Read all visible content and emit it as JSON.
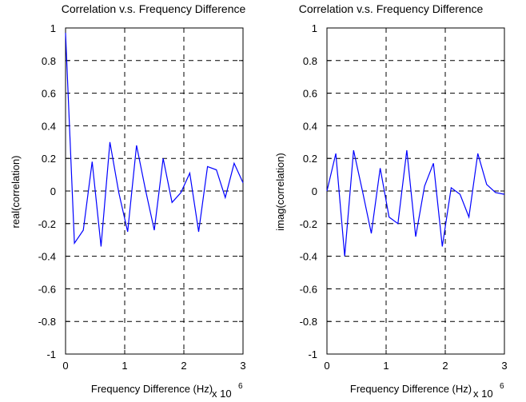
{
  "chart_data": [
    {
      "type": "line",
      "title": "Correlation v.s. Frequency Difference",
      "xlabel": "Frequency Difference (Hz)",
      "ylabel": "real(correlation)",
      "x_exponent_label": "x 10",
      "x_exponent": "6",
      "xlim": [
        0,
        3
      ],
      "ylim": [
        -1,
        1
      ],
      "xticks": [
        0,
        1,
        2,
        3
      ],
      "yticks": [
        -1,
        -0.8,
        -0.6,
        -0.4,
        -0.2,
        0,
        0.2,
        0.4,
        0.6,
        0.8,
        1
      ],
      "grid": true,
      "color": "#0000ff",
      "x": [
        0,
        0.15,
        0.3,
        0.45,
        0.6,
        0.75,
        0.9,
        1.05,
        1.2,
        1.35,
        1.5,
        1.65,
        1.8,
        1.95,
        2.1,
        2.25,
        2.4,
        2.55,
        2.7,
        2.85,
        3.0
      ],
      "values": [
        0.97,
        -0.32,
        -0.24,
        0.18,
        -0.34,
        0.3,
        -0.01,
        -0.25,
        0.28,
        0.01,
        -0.24,
        0.2,
        -0.07,
        -0.01,
        0.11,
        -0.25,
        0.15,
        0.13,
        -0.04,
        0.17,
        0.05
      ]
    },
    {
      "type": "line",
      "title": "Correlation v.s. Frequency Difference",
      "xlabel": "Frequency Difference (Hz)",
      "ylabel": "imag(correlation)",
      "x_exponent_label": "x 10",
      "x_exponent": "6",
      "xlim": [
        0,
        3
      ],
      "ylim": [
        -1,
        1
      ],
      "xticks": [
        0,
        1,
        2,
        3
      ],
      "yticks": [
        -1,
        -0.8,
        -0.6,
        -0.4,
        -0.2,
        0,
        0.2,
        0.4,
        0.6,
        0.8,
        1
      ],
      "grid": true,
      "color": "#0000ff",
      "x": [
        0,
        0.15,
        0.3,
        0.45,
        0.6,
        0.75,
        0.9,
        1.05,
        1.2,
        1.35,
        1.5,
        1.65,
        1.8,
        1.95,
        2.1,
        2.25,
        2.4,
        2.55,
        2.7,
        2.85,
        3.0
      ],
      "values": [
        0.0,
        0.23,
        -0.4,
        0.25,
        0.0,
        -0.26,
        0.14,
        -0.16,
        -0.2,
        0.25,
        -0.28,
        0.03,
        0.17,
        -0.34,
        0.02,
        -0.02,
        -0.16,
        0.23,
        0.04,
        -0.01,
        -0.02
      ]
    }
  ]
}
